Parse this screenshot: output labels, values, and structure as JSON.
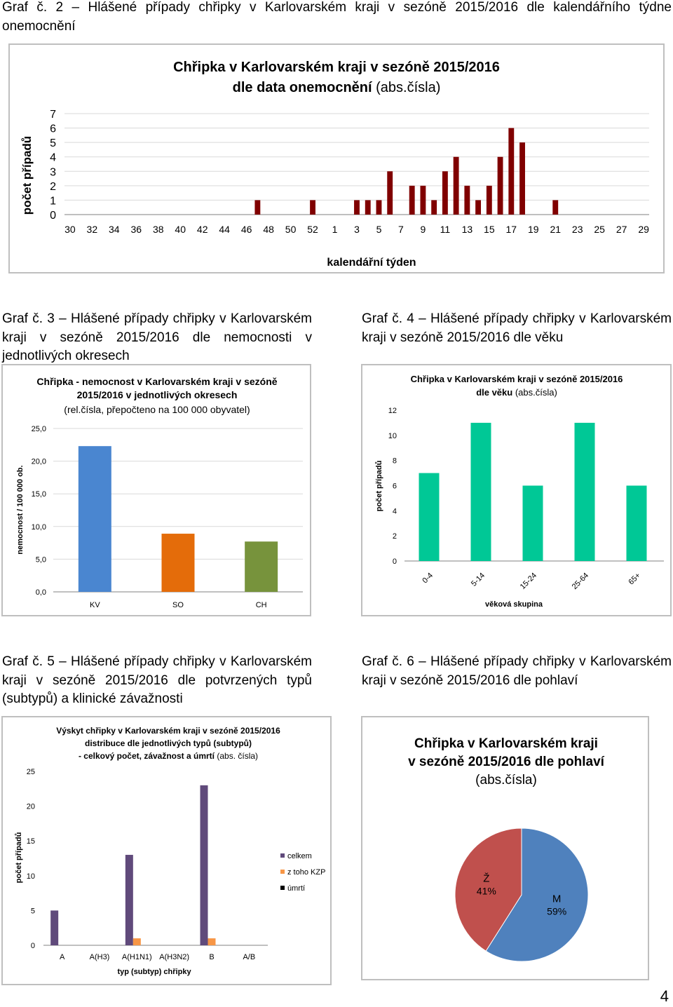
{
  "captions": {
    "c1_line1": "Graf č. 2 – Hlášené případy chřipky v Karlovarském kraji v sezóně 2015/2016 dle kalendářního týdne",
    "c1_line2": "onemocnění",
    "c3": "Graf č. 3 – Hlášené případy chřipky v Karlovarském kraji v sezóně 2015/2016 dle nemocnosti v jednotlivých okresech",
    "c4": "Graf č. 4 – Hlášené případy chřipky v Karlovarském kraji v sezóně 2015/2016 dle věku",
    "c5": "Graf č. 5 – Hlášené případy chřipky v Karlovarském kraji v sezóně 2015/2016 dle potvrzených typů (subtypů) a klinické závažnosti",
    "c6": "Graf č. 6 – Hlášené případy chřipky v Karlovarském kraji v sezóně 2015/2016 dle pohlaví"
  },
  "page_number": "4",
  "chart_data": [
    {
      "id": "weekly",
      "type": "bar",
      "title_line1": "Chřipka v Karlovarském kraji v sezóně 2015/2016",
      "title_line2_bold": "dle data onemocnění",
      "title_line2_normal": "(abs.čísla)",
      "xlabel": "kalendářní týden",
      "ylabel": "počet případů",
      "ylim": [
        0,
        7
      ],
      "yticks": [
        "0",
        "1",
        "2",
        "3",
        "4",
        "5",
        "6",
        "7"
      ],
      "categories": [
        "30",
        "31",
        "32",
        "33",
        "34",
        "35",
        "36",
        "37",
        "38",
        "39",
        "40",
        "41",
        "42",
        "43",
        "44",
        "45",
        "46",
        "47",
        "48",
        "49",
        "50",
        "51",
        "52",
        "53",
        "1",
        "2",
        "3",
        "4",
        "5",
        "6",
        "7",
        "8",
        "9",
        "10",
        "11",
        "12",
        "13",
        "14",
        "15",
        "16",
        "17",
        "18",
        "19",
        "20",
        "21",
        "22",
        "23",
        "24",
        "25",
        "26",
        "27",
        "28",
        "29"
      ],
      "tick_labels": [
        "30",
        "32",
        "34",
        "36",
        "38",
        "40",
        "42",
        "44",
        "46",
        "48",
        "50",
        "52",
        "1",
        "3",
        "5",
        "7",
        "9",
        "11",
        "13",
        "15",
        "17",
        "19",
        "21",
        "23",
        "25",
        "27",
        "29"
      ],
      "values": [
        0,
        0,
        0,
        0,
        0,
        0,
        0,
        0,
        0,
        0,
        0,
        0,
        0,
        0,
        0,
        0,
        0,
        1,
        0,
        0,
        0,
        0,
        1,
        0,
        0,
        0,
        1,
        1,
        1,
        3,
        0,
        2,
        2,
        1,
        3,
        4,
        2,
        1,
        2,
        4,
        6,
        5,
        0,
        0,
        1,
        0,
        0,
        0,
        0,
        0,
        0,
        0,
        0
      ],
      "color": "#800000"
    },
    {
      "id": "districts",
      "type": "bar",
      "title_line1": "Chřipka - nemocnost v Karlovarském kraji v sezóně",
      "title_line2": "2015/2016 v jednotlivých okresech",
      "title_line3": "(rel.čísla, přepočteno na 100 000 obyvatel)",
      "ylabel": "nemocnost / 100 000 ob.",
      "ylim": [
        0,
        25
      ],
      "yticks": [
        "0,0",
        "5,0",
        "10,0",
        "15,0",
        "20,0",
        "25,0"
      ],
      "categories": [
        "KV",
        "SO",
        "CH"
      ],
      "values": [
        22.3,
        8.9,
        7.7
      ],
      "colors": [
        "#4a86d0",
        "#e46c0a",
        "#77933c"
      ]
    },
    {
      "id": "age",
      "type": "bar",
      "title_line1": "Chřipka v Karlovarském kraji v sezóně 2015/2016",
      "title_line2_bold": "dle věku",
      "title_line2_normal": "(abs.čísla)",
      "xlabel": "věková skupina",
      "ylabel": "počet případů",
      "ylim": [
        0,
        12
      ],
      "yticks": [
        "0",
        "2",
        "4",
        "6",
        "8",
        "10",
        "12"
      ],
      "categories": [
        "0-4",
        "5-14",
        "15-24",
        "25-64",
        "65+"
      ],
      "values": [
        7,
        11,
        6,
        11,
        6
      ],
      "color": "#00c896"
    },
    {
      "id": "subtypes",
      "type": "bar",
      "title_line1": "Výskyt chřipky v Karlovarském kraji v sezóně 2015/2016",
      "title_line2": "distribuce dle jednotlivých typů (subtypů)",
      "title_line3_bold": "- celkový počet, závažnost a úmrtí",
      "title_line3_normal": "(abs. čísla)",
      "xlabel": "typ (subtyp) chřipky",
      "ylabel": "počet případů",
      "ylim": [
        0,
        25
      ],
      "yticks": [
        "0",
        "5",
        "10",
        "15",
        "20",
        "25"
      ],
      "categories": [
        "A",
        "A(H3)",
        "A(H1N1)",
        "A(H3N2)",
        "B",
        "A/B"
      ],
      "series": [
        {
          "name": "celkem",
          "values": [
            5,
            0,
            13,
            0,
            23,
            0
          ],
          "color": "#604a7b"
        },
        {
          "name": "z toho KZP",
          "values": [
            0,
            0,
            1,
            0,
            1,
            0
          ],
          "color": "#f79646"
        },
        {
          "name": "úmrtí",
          "values": [
            0,
            0,
            0,
            0,
            0,
            0
          ],
          "color": "#000000"
        }
      ]
    },
    {
      "id": "sex",
      "type": "pie",
      "title_line1": "Chřipka v Karlovarském kraji",
      "title_line2": "v sezóně 2015/2016 dle pohlaví",
      "title_line3": "(abs.čísla)",
      "slices": [
        {
          "label": "M",
          "percent_label": "59%",
          "value": 59,
          "color": "#4f81bd"
        },
        {
          "label": "Ž",
          "percent_label": "41%",
          "value": 41,
          "color": "#c0504d"
        }
      ]
    }
  ]
}
